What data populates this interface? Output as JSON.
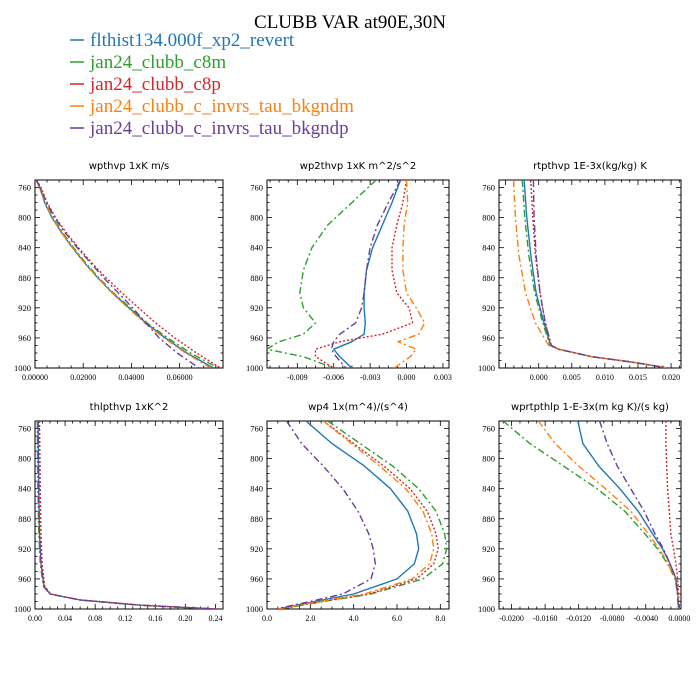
{
  "figure": {
    "title": "CLUBB VAR at90E,30N"
  },
  "legend": [
    {
      "name": "flthist134.000f_xp2_revert",
      "color": "#1f77b4",
      "dash": "solid"
    },
    {
      "name": "jan24_clubb_c8m",
      "color": "#2ca02c",
      "dash": "dashdot"
    },
    {
      "name": "jan24_clubb_c8p",
      "color": "#d62728",
      "dash": "dotted"
    },
    {
      "name": "jan24_clubb_c_invrs_tau_bkgndm",
      "color": "#ff7f0e",
      "dash": "dashdot"
    },
    {
      "name": "jan24_clubb_c_invrs_tau_bkgndp",
      "color": "#6a3d9a",
      "dash": "dashdot"
    }
  ],
  "chart_data": [
    {
      "type": "line",
      "title": "wpthvp  1xK m/s",
      "xlim": [
        0,
        0.078
      ],
      "ylim": [
        1000,
        750
      ],
      "yreverse": true,
      "xticks": [
        0,
        0.02,
        0.04,
        0.06
      ],
      "xtick_labels": [
        "0.00000",
        "0.02000",
        "0.04000",
        "0.06000"
      ],
      "yticks": [
        760,
        800,
        840,
        880,
        920,
        960,
        1000
      ],
      "y": [
        750,
        760,
        780,
        800,
        820,
        840,
        860,
        880,
        900,
        920,
        940,
        960,
        980,
        1000
      ],
      "series": [
        {
          "name": "flthist134.000f_xp2_revert",
          "x": [
            0.0005,
            0.002,
            0.004,
            0.007,
            0.011,
            0.0155,
            0.0205,
            0.026,
            0.032,
            0.039,
            0.046,
            0.054,
            0.063,
            0.074
          ]
        },
        {
          "name": "jan24_clubb_c8m",
          "x": [
            0.0005,
            0.002,
            0.0045,
            0.0075,
            0.0115,
            0.016,
            0.021,
            0.0265,
            0.0325,
            0.0395,
            0.0465,
            0.055,
            0.0645,
            0.076
          ]
        },
        {
          "name": "jan24_clubb_c8p",
          "x": [
            0.0006,
            0.0025,
            0.005,
            0.0085,
            0.013,
            0.018,
            0.0235,
            0.0295,
            0.036,
            0.043,
            0.05,
            0.058,
            0.067,
            0.077
          ]
        },
        {
          "name": "jan24_clubb_c_invrs_tau_bkgndm",
          "x": [
            0.0004,
            0.002,
            0.0042,
            0.0072,
            0.011,
            0.0155,
            0.0205,
            0.026,
            0.032,
            0.0385,
            0.0455,
            0.0535,
            0.0625,
            0.073
          ]
        },
        {
          "name": "jan24_clubb_c_invrs_tau_bkgndp",
          "x": [
            0.0005,
            0.0022,
            0.0048,
            0.0082,
            0.0125,
            0.0175,
            0.023,
            0.0285,
            0.0345,
            0.0405,
            0.046,
            0.0515,
            0.059,
            0.068
          ]
        }
      ]
    },
    {
      "type": "line",
      "title": "wp2thvp  1xK m^2/s^2",
      "xlim": [
        -0.0115,
        0.0035
      ],
      "ylim": [
        1000,
        750
      ],
      "yreverse": true,
      "xticks": [
        -0.009,
        -0.006,
        -0.003,
        0.0,
        0.003
      ],
      "xtick_labels": [
        "-0.009",
        "-0.006",
        "-0.003",
        "0.000",
        "0.003"
      ],
      "yticks": [
        760,
        800,
        840,
        880,
        920,
        960,
        1000
      ],
      "y": [
        750,
        780,
        810,
        840,
        870,
        900,
        920,
        940,
        955,
        965,
        975,
        985,
        1000
      ],
      "series": [
        {
          "name": "flthist134.000f_xp2_revert",
          "x": [
            -0.0005,
            -0.0012,
            -0.002,
            -0.0028,
            -0.0033,
            -0.0035,
            -0.0035,
            -0.0034,
            -0.0035,
            -0.0045,
            -0.006,
            -0.0055,
            -0.0045
          ]
        },
        {
          "name": "jan24_clubb_c8m",
          "x": [
            -0.0025,
            -0.0045,
            -0.0065,
            -0.0078,
            -0.0085,
            -0.0088,
            -0.0085,
            -0.0075,
            -0.0085,
            -0.0105,
            -0.0115,
            -0.0085,
            -0.006
          ]
        },
        {
          "name": "jan24_clubb_c8p",
          "x": [
            0.0,
            -0.0003,
            -0.0008,
            -0.0012,
            -0.0012,
            -0.0008,
            0.0002,
            0.0005,
            -0.002,
            -0.0055,
            -0.0075,
            -0.0075,
            -0.006
          ]
        },
        {
          "name": "jan24_clubb_c_invrs_tau_bkgndm",
          "x": [
            0.0,
            0.0001,
            -0.0002,
            -0.0003,
            -0.0003,
            0.0,
            0.0008,
            0.0015,
            0.001,
            -0.0007,
            0.0008,
            0.0003,
            -0.001
          ]
        },
        {
          "name": "jan24_clubb_c_invrs_tau_bkgndp",
          "x": [
            -0.0005,
            -0.0015,
            -0.0024,
            -0.003,
            -0.0033,
            -0.0035,
            -0.0037,
            -0.0042,
            -0.0055,
            -0.006,
            -0.0062,
            -0.0058,
            -0.005
          ]
        }
      ]
    },
    {
      "type": "line",
      "title": "rtpthvp  1E-3x(kg/kg) K",
      "xlim": [
        -0.006,
        0.0215
      ],
      "ylim": [
        1000,
        750
      ],
      "yreverse": true,
      "xticks": [
        0,
        0.005,
        0.01,
        0.015,
        0.02
      ],
      "xtick_labels": [
        "0.000",
        "0.005",
        "0.010",
        "0.015",
        "0.020"
      ],
      "yticks": [
        760,
        800,
        840,
        880,
        920,
        960,
        1000
      ],
      "y": [
        750,
        800,
        850,
        900,
        940,
        970,
        975,
        985,
        992,
        1000
      ],
      "series": [
        {
          "name": "flthist134.000f_xp2_revert",
          "x": [
            -0.0022,
            -0.0018,
            -0.0012,
            -0.0004,
            0.0008,
            0.0018,
            0.003,
            0.008,
            0.014,
            0.0195
          ]
        },
        {
          "name": "jan24_clubb_c8m",
          "x": [
            -0.0025,
            -0.0021,
            -0.0015,
            -0.0006,
            0.0006,
            0.0017,
            0.003,
            0.008,
            0.014,
            0.0195
          ]
        },
        {
          "name": "jan24_clubb_c8p",
          "x": [
            -0.0012,
            -0.0009,
            -0.0005,
            0.0002,
            0.001,
            0.0019,
            0.003,
            0.008,
            0.014,
            0.0195
          ]
        },
        {
          "name": "jan24_clubb_c_invrs_tau_bkgndm",
          "x": [
            -0.0038,
            -0.0035,
            -0.003,
            -0.002,
            -0.0005,
            0.0015,
            0.003,
            0.008,
            0.014,
            0.0195
          ]
        },
        {
          "name": "jan24_clubb_c_invrs_tau_bkgndp",
          "x": [
            -0.0008,
            -0.0007,
            -0.0004,
            0.0002,
            0.001,
            0.0019,
            0.003,
            0.008,
            0.014,
            0.0195
          ]
        }
      ]
    },
    {
      "type": "line",
      "title": "thlpthvp  1xK^2",
      "xlim": [
        0,
        0.25
      ],
      "ylim": [
        1000,
        750
      ],
      "yreverse": true,
      "xticks": [
        0,
        0.04,
        0.08,
        0.12,
        0.16,
        0.2,
        0.24
      ],
      "xtick_labels": [
        "0.00",
        "0.04",
        "0.08",
        "0.12",
        "0.16",
        "0.20",
        "0.24"
      ],
      "yticks": [
        760,
        800,
        840,
        880,
        920,
        960,
        1000
      ],
      "y": [
        750,
        800,
        850,
        900,
        940,
        970,
        980,
        988,
        995,
        1000
      ],
      "series": [
        {
          "name": "flthist134.000f_xp2_revert",
          "x": [
            0.004,
            0.0045,
            0.005,
            0.006,
            0.008,
            0.012,
            0.02,
            0.06,
            0.14,
            0.24
          ]
        },
        {
          "name": "jan24_clubb_c8m",
          "x": [
            0.003,
            0.0035,
            0.004,
            0.005,
            0.007,
            0.011,
            0.02,
            0.06,
            0.14,
            0.24
          ]
        },
        {
          "name": "jan24_clubb_c8p",
          "x": [
            0.006,
            0.0065,
            0.007,
            0.008,
            0.0095,
            0.013,
            0.021,
            0.061,
            0.141,
            0.242
          ]
        },
        {
          "name": "jan24_clubb_c_invrs_tau_bkgndm",
          "x": [
            0.004,
            0.0045,
            0.005,
            0.0058,
            0.0078,
            0.012,
            0.02,
            0.06,
            0.14,
            0.24
          ]
        },
        {
          "name": "jan24_clubb_c_invrs_tau_bkgndp",
          "x": [
            0.004,
            0.0045,
            0.005,
            0.006,
            0.008,
            0.012,
            0.02,
            0.06,
            0.14,
            0.24
          ]
        }
      ]
    },
    {
      "type": "line",
      "title": "wp4  1x(m^4)/(s^4)",
      "xlim": [
        0,
        8.4
      ],
      "ylim": [
        1000,
        750
      ],
      "yreverse": true,
      "xticks": [
        0,
        2,
        4,
        6,
        8
      ],
      "xtick_labels": [
        "0.0",
        "2.0",
        "4.0",
        "6.0",
        "8.0"
      ],
      "yticks": [
        760,
        800,
        840,
        880,
        920,
        960,
        1000
      ],
      "y": [
        750,
        780,
        810,
        840,
        870,
        900,
        920,
        940,
        960,
        980,
        990,
        1000
      ],
      "series": [
        {
          "name": "flthist134.000f_xp2_revert",
          "x": [
            1.8,
            3.0,
            4.5,
            5.7,
            6.5,
            6.9,
            7.0,
            6.8,
            6.0,
            4.0,
            2.2,
            0.5
          ]
        },
        {
          "name": "jan24_clubb_c8m",
          "x": [
            2.8,
            4.3,
            5.8,
            7.0,
            7.8,
            8.2,
            8.3,
            8.1,
            7.2,
            4.8,
            2.6,
            0.6
          ]
        },
        {
          "name": "jan24_clubb_c8p",
          "x": [
            2.6,
            4.0,
            5.4,
            6.6,
            7.4,
            7.8,
            7.9,
            7.7,
            6.9,
            4.7,
            2.5,
            0.6
          ]
        },
        {
          "name": "jan24_clubb_c_invrs_tau_bkgndm",
          "x": [
            2.6,
            3.9,
            5.2,
            6.4,
            7.2,
            7.6,
            7.7,
            7.5,
            6.7,
            4.5,
            2.4,
            0.5
          ]
        },
        {
          "name": "jan24_clubb_c_invrs_tau_bkgndp",
          "x": [
            0.9,
            1.6,
            2.6,
            3.5,
            4.2,
            4.7,
            4.9,
            5.0,
            4.8,
            3.5,
            2.0,
            0.4
          ]
        }
      ]
    },
    {
      "type": "line",
      "title": "wprtpthlp  1-E-3x(m kg K)/(s kg)",
      "xlim": [
        -0.0215,
        0.0002
      ],
      "ylim": [
        1000,
        750
      ],
      "yreverse": true,
      "xticks": [
        -0.02,
        -0.016,
        -0.012,
        -0.008,
        -0.004,
        0.0
      ],
      "xtick_labels": [
        "-0.0200",
        "-0.0160",
        "-0.0120",
        "-0.0080",
        "-0.0040",
        "0.0000"
      ],
      "yticks": [
        760,
        800,
        840,
        880,
        920,
        960,
        1000
      ],
      "y": [
        750,
        780,
        810,
        840,
        870,
        900,
        920,
        940,
        960,
        980,
        1000
      ],
      "series": [
        {
          "name": "flthist134.000f_xp2_revert",
          "x": [
            -0.0121,
            -0.0115,
            -0.0096,
            -0.0071,
            -0.0049,
            -0.0032,
            -0.002,
            -0.0011,
            -0.0004,
            -0.0002,
            -0.0001
          ]
        },
        {
          "name": "jan24_clubb_c8m",
          "x": [
            -0.021,
            -0.0178,
            -0.0138,
            -0.0098,
            -0.0065,
            -0.0041,
            -0.0026,
            -0.0014,
            -0.0005,
            -0.0002,
            -0.0001
          ]
        },
        {
          "name": "jan24_clubb_c8p",
          "x": [
            -0.0016,
            -0.0016,
            -0.0015,
            -0.0014,
            -0.0012,
            -0.001,
            -0.0007,
            -0.0004,
            -0.0002,
            -0.0001,
            0.0
          ]
        },
        {
          "name": "jan24_clubb_c_invrs_tau_bkgndm",
          "x": [
            -0.0168,
            -0.0148,
            -0.012,
            -0.0088,
            -0.0058,
            -0.0037,
            -0.0024,
            -0.0013,
            -0.0005,
            -0.0002,
            -0.0001
          ]
        },
        {
          "name": "jan24_clubb_c_invrs_tau_bkgndp",
          "x": [
            -0.0095,
            -0.0086,
            -0.0074,
            -0.0058,
            -0.0042,
            -0.0029,
            -0.0019,
            -0.0011,
            -0.0004,
            -0.0002,
            -0.0001
          ]
        }
      ]
    }
  ]
}
